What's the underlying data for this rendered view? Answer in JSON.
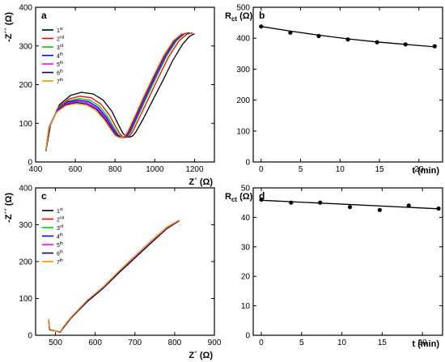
{
  "chart_data": [
    {
      "id": "a",
      "panel_label": "a",
      "type": "line",
      "xlabel": "Z´ (Ω)",
      "ylabel": "-Z´´ (Ω)",
      "xlim": [
        400,
        1300
      ],
      "ylim": [
        0,
        400
      ],
      "xticks": [
        400,
        600,
        800,
        1000,
        1200
      ],
      "yticks": [
        0,
        100,
        200,
        300,
        400
      ],
      "legend_position": "top-left",
      "series": [
        {
          "name": "1st",
          "base": "1",
          "sup": "st",
          "color": "#000000",
          "x": [
            452,
            475,
            520,
            575,
            630,
            690,
            740,
            785,
            815,
            840,
            862,
            878,
            890,
            905,
            940,
            990,
            1040,
            1090,
            1140,
            1175,
            1200
          ],
          "y": [
            28,
            95,
            148,
            172,
            180,
            176,
            160,
            130,
            98,
            74,
            64,
            65,
            68,
            78,
            110,
            160,
            210,
            262,
            305,
            325,
            332
          ]
        },
        {
          "name": "2nd",
          "base": "2",
          "sup": "nd",
          "color": "#ff0000",
          "x": [
            452,
            472,
            515,
            568,
            622,
            680,
            728,
            770,
            800,
            825,
            845,
            860,
            872,
            888,
            920,
            970,
            1020,
            1070,
            1120,
            1160,
            1190
          ],
          "y": [
            30,
            93,
            142,
            163,
            170,
            166,
            150,
            122,
            94,
            72,
            63,
            64,
            67,
            78,
            112,
            166,
            220,
            272,
            312,
            330,
            334
          ]
        },
        {
          "name": "3rd",
          "base": "3",
          "sup": "rd",
          "color": "#00cc00",
          "x": [
            452,
            470,
            512,
            563,
            617,
            673,
            720,
            762,
            792,
            817,
            837,
            852,
            864,
            880,
            912,
            960,
            1010,
            1060,
            1110,
            1150,
            1180
          ],
          "y": [
            30,
            92,
            139,
            158,
            164,
            160,
            145,
            118,
            91,
            71,
            63,
            64,
            67,
            79,
            114,
            168,
            222,
            274,
            314,
            331,
            334
          ]
        },
        {
          "name": "4th",
          "base": "4",
          "sup": "th",
          "color": "#0000ff",
          "x": [
            452,
            468,
            510,
            560,
            613,
            668,
            715,
            757,
            787,
            812,
            832,
            847,
            859,
            875,
            906,
            954,
            1004,
            1054,
            1104,
            1144,
            1174
          ],
          "y": [
            30,
            90,
            136,
            155,
            160,
            156,
            141,
            115,
            89,
            70,
            63,
            64,
            67,
            79,
            114,
            168,
            222,
            274,
            314,
            331,
            334
          ]
        },
        {
          "name": "5th",
          "base": "5",
          "sup": "th",
          "color": "#ff00ff",
          "x": [
            452,
            467,
            508,
            557,
            609,
            664,
            711,
            753,
            783,
            808,
            828,
            843,
            855,
            871,
            902,
            950,
            1000,
            1050,
            1100,
            1140,
            1170
          ],
          "y": [
            30,
            88,
            133,
            152,
            157,
            153,
            138,
            113,
            88,
            69,
            63,
            64,
            67,
            79,
            114,
            168,
            222,
            274,
            314,
            331,
            334
          ]
        },
        {
          "name": "6th",
          "base": "6",
          "sup": "th",
          "color": "#000080",
          "x": [
            452,
            466,
            506,
            555,
            606,
            660,
            707,
            749,
            779,
            804,
            824,
            839,
            851,
            867,
            898,
            946,
            996,
            1046,
            1096,
            1136,
            1166
          ],
          "y": [
            30,
            86,
            130,
            149,
            154,
            150,
            136,
            111,
            87,
            69,
            63,
            64,
            67,
            79,
            114,
            168,
            222,
            274,
            314,
            331,
            334
          ]
        },
        {
          "name": "7th",
          "base": "7",
          "sup": "th",
          "color": "#ff8c00",
          "x": [
            452,
            465,
            504,
            552,
            603,
            657,
            704,
            746,
            776,
            801,
            821,
            836,
            848,
            864,
            895,
            943,
            993,
            1043,
            1093,
            1133,
            1163
          ],
          "y": [
            30,
            84,
            128,
            146,
            151,
            147,
            133,
            109,
            86,
            68,
            63,
            64,
            67,
            79,
            114,
            168,
            222,
            274,
            314,
            331,
            334
          ]
        }
      ]
    },
    {
      "id": "b",
      "panel_label": "b",
      "type": "scatter",
      "xlabel": "t (min)",
      "ylabel_base": "R",
      "ylabel_sub": "ct",
      "ylabel_unit": " (Ω)",
      "xlim": [
        -1,
        23
      ],
      "ylim": [
        0,
        500
      ],
      "xticks": [
        0,
        5,
        10,
        15,
        20
      ],
      "yticks": [
        0,
        100,
        200,
        300,
        400,
        500
      ],
      "points": {
        "x": [
          0,
          3.7,
          7.3,
          11,
          14.7,
          18.3,
          22
        ],
        "y": [
          438,
          418,
          407,
          396,
          387,
          380,
          374
        ]
      },
      "fit": {
        "x": [
          0,
          3.7,
          7.3,
          11,
          14.7,
          18.3,
          22
        ],
        "y": [
          438,
          423,
          410,
          398,
          388,
          380,
          372
        ]
      }
    },
    {
      "id": "c",
      "panel_label": "c",
      "type": "line",
      "xlabel": "Z´ (Ω)",
      "ylabel": "-Z´´ (Ω)",
      "xlim": [
        450,
        900
      ],
      "ylim": [
        0,
        400
      ],
      "xticks": [
        500,
        600,
        700,
        800,
        900
      ],
      "yticks": [
        0,
        100,
        200,
        300,
        400
      ],
      "legend_position": "top-left",
      "series": [
        {
          "name": "1st",
          "base": "1",
          "sup": "st",
          "color": "#000000",
          "x": [
            483,
            485,
            500,
            512,
            518,
            540,
            580,
            620,
            660,
            700,
            740,
            780,
            810
          ],
          "y": [
            40,
            15,
            12,
            8,
            18,
            48,
            92,
            128,
            170,
            210,
            250,
            290,
            310
          ]
        },
        {
          "name": "2nd",
          "base": "2",
          "sup": "nd",
          "color": "#ff0000",
          "x": [
            483,
            485,
            500,
            512,
            518,
            540,
            580,
            620,
            660,
            700,
            740,
            780,
            812
          ],
          "y": [
            43,
            16,
            12,
            9,
            20,
            50,
            94,
            131,
            174,
            215,
            255,
            293,
            312
          ]
        },
        {
          "name": "3rd",
          "base": "3",
          "sup": "rd",
          "color": "#00cc00",
          "x": [
            483,
            485,
            500,
            512,
            518,
            540,
            580,
            620,
            660,
            700,
            740,
            780,
            811
          ],
          "y": [
            42,
            15,
            12,
            9,
            19,
            49,
            93,
            129,
            172,
            213,
            253,
            291,
            311
          ]
        },
        {
          "name": "4th",
          "base": "4",
          "sup": "th",
          "color": "#0000ff",
          "x": [
            483,
            485,
            500,
            512,
            518,
            540,
            580,
            620,
            660,
            700,
            740,
            780,
            810
          ],
          "y": [
            41,
            15,
            12,
            9,
            18,
            48,
            92,
            128,
            171,
            211,
            251,
            290,
            310
          ]
        },
        {
          "name": "5th",
          "base": "5",
          "sup": "th",
          "color": "#ff00ff",
          "x": [
            483,
            485,
            500,
            512,
            518,
            540,
            580,
            620,
            660,
            700,
            740,
            780,
            811
          ],
          "y": [
            41,
            15,
            12,
            9,
            18,
            48,
            92,
            129,
            171,
            212,
            252,
            290,
            311
          ]
        },
        {
          "name": "6th",
          "base": "6",
          "sup": "th",
          "color": "#000080",
          "x": [
            483,
            485,
            500,
            512,
            518,
            540,
            580,
            620,
            660,
            700,
            740,
            780,
            810
          ],
          "y": [
            40,
            15,
            12,
            8,
            18,
            48,
            91,
            128,
            170,
            210,
            250,
            289,
            310
          ]
        },
        {
          "name": "7th",
          "base": "7",
          "sup": "th",
          "color": "#ff8c00",
          "x": [
            483,
            485,
            500,
            512,
            518,
            540,
            580,
            620,
            660,
            700,
            740,
            780,
            812
          ],
          "y": [
            44,
            16,
            12,
            9,
            20,
            50,
            95,
            131,
            174,
            214,
            254,
            292,
            313
          ]
        }
      ]
    },
    {
      "id": "d",
      "panel_label": "d",
      "type": "scatter",
      "xlabel": "t (min)",
      "ylabel_base": "R",
      "ylabel_sub": "ct",
      "ylabel_unit": " (Ω)",
      "xlim": [
        -1,
        22.5
      ],
      "ylim": [
        0,
        50
      ],
      "xticks": [
        0,
        5,
        10,
        15,
        20
      ],
      "yticks": [
        0,
        10,
        20,
        30,
        40,
        50
      ],
      "points": {
        "x": [
          0,
          3.7,
          7.3,
          11,
          14.7,
          18.3,
          22
        ],
        "y": [
          46,
          45,
          45,
          43.5,
          42.5,
          44,
          43
        ]
      },
      "fit": {
        "x": [
          0,
          22
        ],
        "y": [
          45.8,
          42.9
        ]
      }
    }
  ]
}
